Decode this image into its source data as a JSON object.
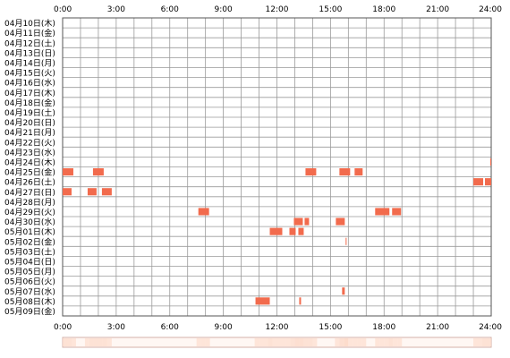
{
  "chart_data": {
    "type": "timeline",
    "x_ticks": [
      "0:00",
      "3:00",
      "6:00",
      "9:00",
      "12:00",
      "15:00",
      "18:00",
      "21:00",
      "24:00"
    ],
    "xlim": [
      0,
      24
    ],
    "grid": true,
    "x_unit": "hours",
    "rows": [
      {
        "label": "04月10日(木)",
        "spans": []
      },
      {
        "label": "04月11日(金)",
        "spans": []
      },
      {
        "label": "04月12日(土)",
        "spans": []
      },
      {
        "label": "04月13日(日)",
        "spans": []
      },
      {
        "label": "04月14日(月)",
        "spans": []
      },
      {
        "label": "04月15日(火)",
        "spans": []
      },
      {
        "label": "04月16日(水)",
        "spans": []
      },
      {
        "label": "04月17日(木)",
        "spans": []
      },
      {
        "label": "04月18日(金)",
        "spans": []
      },
      {
        "label": "04月19日(土)",
        "spans": []
      },
      {
        "label": "04月20日(日)",
        "spans": []
      },
      {
        "label": "04月21日(月)",
        "spans": []
      },
      {
        "label": "04月22日(火)",
        "spans": []
      },
      {
        "label": "04月23日(水)",
        "spans": []
      },
      {
        "label": "04月24日(木)",
        "spans": [
          [
            23.95,
            24.0
          ]
        ]
      },
      {
        "label": "04月25日(金)",
        "spans": [
          [
            0.0,
            0.6
          ],
          [
            1.7,
            2.3
          ],
          [
            13.6,
            14.2
          ],
          [
            15.5,
            16.1
          ],
          [
            16.35,
            16.8
          ]
        ]
      },
      {
        "label": "04月26日(土)",
        "spans": [
          [
            23.0,
            23.55
          ],
          [
            23.65,
            24.0
          ]
        ]
      },
      {
        "label": "04月27日(日)",
        "spans": [
          [
            0.0,
            0.5
          ],
          [
            1.4,
            1.9
          ],
          [
            2.2,
            2.75
          ]
        ]
      },
      {
        "label": "04月28日(月)",
        "spans": []
      },
      {
        "label": "04月29日(火)",
        "spans": [
          [
            7.6,
            8.2
          ],
          [
            17.5,
            18.3
          ],
          [
            18.45,
            18.95
          ]
        ]
      },
      {
        "label": "04月30日(水)",
        "spans": [
          [
            12.95,
            13.45
          ],
          [
            13.55,
            13.8
          ],
          [
            15.3,
            15.8
          ]
        ]
      },
      {
        "label": "05月01日(木)",
        "spans": [
          [
            11.6,
            12.3
          ],
          [
            12.7,
            13.05
          ],
          [
            13.2,
            13.5
          ]
        ]
      },
      {
        "label": "05月02日(金)",
        "spans": [
          [
            15.85,
            15.9
          ]
        ]
      },
      {
        "label": "05月03日(土)",
        "spans": []
      },
      {
        "label": "05月04日(日)",
        "spans": []
      },
      {
        "label": "05月05日(月)",
        "spans": []
      },
      {
        "label": "05月06日(火)",
        "spans": []
      },
      {
        "label": "05月07日(水)",
        "spans": [
          [
            15.65,
            15.8
          ]
        ]
      },
      {
        "label": "05月08日(木)",
        "spans": [
          [
            10.8,
            11.6
          ],
          [
            13.25,
            13.35
          ]
        ]
      },
      {
        "label": "05月09日(金)",
        "spans": []
      }
    ],
    "colors": {
      "bar": "#f26b4d",
      "grid": "#9a9a9a",
      "frame": "#555555",
      "summary_fill": "#fddccc",
      "summary_frame": "#d4b2a8"
    }
  }
}
